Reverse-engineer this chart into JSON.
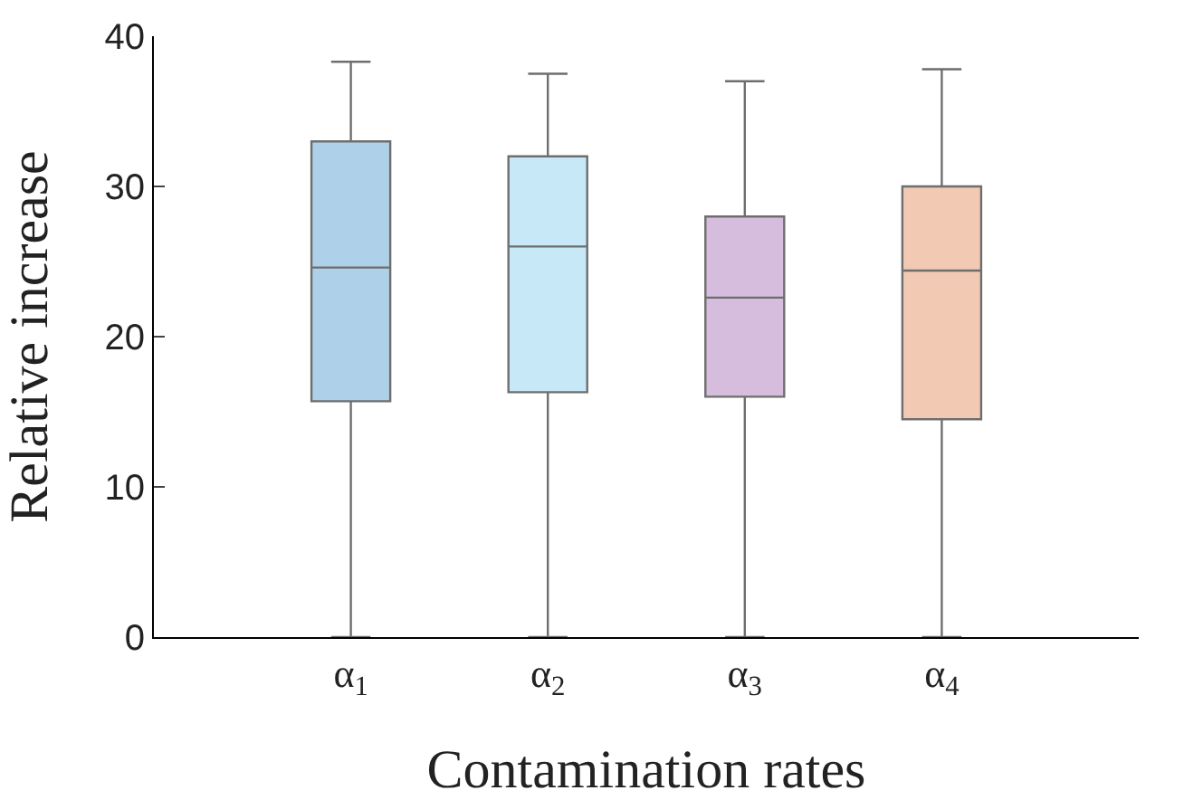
{
  "chart_data": {
    "type": "box",
    "xlabel": "Contamination rates",
    "ylabel": "Relative increase",
    "categories": [
      "α$_{1}$",
      "α$_{2}$",
      "α$_{3}$",
      "α$_{4}$"
    ],
    "colors": [
      "#aed0e8",
      "#c6e8f7",
      "#d7bddd",
      "#f2c9b3"
    ],
    "boxes": [
      {
        "low": 0,
        "q1": 15.7,
        "median": 24.6,
        "q3": 33,
        "high": 38.3
      },
      {
        "low": 0,
        "q1": 16.3,
        "median": 26,
        "q3": 32,
        "high": 37.5
      },
      {
        "low": 0,
        "q1": 16,
        "median": 22.6,
        "q3": 28,
        "high": 37
      },
      {
        "low": 0,
        "q1": 14.5,
        "median": 24.4,
        "q3": 30,
        "high": 37.8
      }
    ],
    "ylim": [
      0,
      40
    ],
    "yticks": [
      0,
      10,
      20,
      30,
      40
    ]
  }
}
